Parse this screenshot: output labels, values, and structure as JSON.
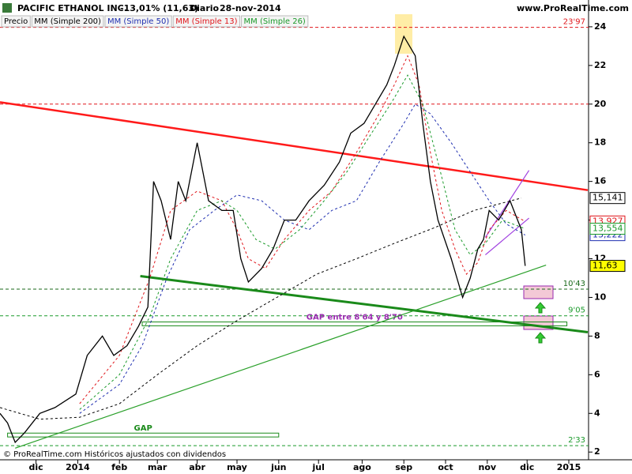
{
  "chart_data": {
    "type": "line",
    "title": "PACIFIC ETHANOL INC.",
    "change": "-13,01% (11,63)",
    "period": "Diario",
    "date": "28-nov-2014",
    "source": "www.ProRealTime.com",
    "footer": "© ProRealTime.com Históricos ajustados con dividendos",
    "xlim": [
      0,
      310
    ],
    "ylim": [
      1.6,
      24.65
    ],
    "yticks": [
      2,
      4,
      6,
      8,
      10,
      12,
      14,
      16,
      18,
      20,
      22,
      24
    ],
    "xticks": [
      {
        "value": 19,
        "label": "dic"
      },
      {
        "value": 41,
        "label": "2014"
      },
      {
        "value": 63,
        "label": "feb"
      },
      {
        "value": 83,
        "label": "mar"
      },
      {
        "value": 104,
        "label": "abr"
      },
      {
        "value": 125,
        "label": "may"
      },
      {
        "value": 147,
        "label": "jun"
      },
      {
        "value": 168,
        "label": "jul"
      },
      {
        "value": 191,
        "label": "ago"
      },
      {
        "value": 213,
        "label": "sep"
      },
      {
        "value": 235,
        "label": "oct"
      },
      {
        "value": 257,
        "label": "nov"
      },
      {
        "value": 278,
        "label": "dic"
      },
      {
        "value": 300,
        "label": "2015"
      }
    ],
    "series": [
      {
        "name": "Precio",
        "color": "#000000",
        "dash": false,
        "label_bg": "#ffff00",
        "x": [
          0,
          4,
          8,
          13,
          21,
          29,
          40,
          46,
          54,
          60,
          67,
          73,
          78,
          81,
          85,
          90,
          94,
          98,
          104,
          110,
          117,
          123,
          127,
          131,
          138,
          144,
          150,
          156,
          163,
          171,
          179,
          185,
          192,
          198,
          204,
          208,
          213,
          219,
          223,
          227,
          231,
          238,
          244,
          248,
          252,
          255,
          258,
          263,
          269,
          273,
          275,
          277
        ],
        "values": [
          4.0,
          3.5,
          2.5,
          3.0,
          4.0,
          4.3,
          5.0,
          7.0,
          8.0,
          7.0,
          7.5,
          8.5,
          9.5,
          16.0,
          15.0,
          13.0,
          16.0,
          15.0,
          18.0,
          15.0,
          14.5,
          14.5,
          12.0,
          10.8,
          11.5,
          12.5,
          14.0,
          14.0,
          15.0,
          15.8,
          17.0,
          18.5,
          19.0,
          20.0,
          21.0,
          22.0,
          23.5,
          22.5,
          19.0,
          16.0,
          14.0,
          12.0,
          10.0,
          11.0,
          12.5,
          13.0,
          14.5,
          14.0,
          15.0,
          14.0,
          13.5,
          11.63
        ],
        "last": {
          "value": 11.63,
          "label": "11,63"
        }
      },
      {
        "name": "MM (Simple 200)",
        "color": "#000000",
        "dash": true,
        "label_bg": "#ffffff",
        "x": [
          0,
          21,
          42,
          63,
          83,
          104,
          125,
          146,
          167,
          188,
          208,
          229,
          250,
          275
        ],
        "values": [
          4.3,
          3.7,
          3.8,
          4.5,
          6.0,
          7.5,
          8.8,
          10.0,
          11.2,
          12.0,
          12.8,
          13.6,
          14.5,
          15.141
        ],
        "last": {
          "value": 15.141,
          "label": "15,141"
        }
      },
      {
        "name": "MM (Simple 50)",
        "color": "#1f2fb0",
        "dash": true,
        "label_bg": "#ffffff",
        "x": [
          42,
          63,
          75,
          88,
          100,
          113,
          125,
          138,
          150,
          163,
          175,
          188,
          200,
          213,
          219,
          227,
          238,
          248,
          258,
          267,
          277
        ],
        "values": [
          4.0,
          5.5,
          7.5,
          11.0,
          13.5,
          14.5,
          15.3,
          15.0,
          14.0,
          13.5,
          14.5,
          15.0,
          17.0,
          19.0,
          20.0,
          19.5,
          18.0,
          16.5,
          15.0,
          13.8,
          13.222
        ],
        "last": {
          "value": 13.222,
          "label": "13,222"
        }
      },
      {
        "name": "MM (Simple 13)",
        "color": "#e0161b",
        "dash": true,
        "label_bg": "#ffffff",
        "x": [
          42,
          63,
          79,
          90,
          104,
          117,
          125,
          131,
          140,
          150,
          163,
          175,
          188,
          200,
          208,
          215,
          221,
          227,
          233,
          240,
          246,
          252,
          258,
          267,
          277
        ],
        "values": [
          4.5,
          7.0,
          11.0,
          14.5,
          15.5,
          15.0,
          13.5,
          12.0,
          11.5,
          13.0,
          14.5,
          15.5,
          17.5,
          19.5,
          21.0,
          22.5,
          21.0,
          17.5,
          14.5,
          12.5,
          11.2,
          11.8,
          13.5,
          14.5,
          13.927
        ],
        "last": {
          "value": 13.927,
          "label": "13,927"
        }
      },
      {
        "name": "MM (Simple 26)",
        "color": "#1a9a2a",
        "dash": true,
        "label_bg": "#ffffff",
        "x": [
          42,
          63,
          79,
          90,
          104,
          117,
          125,
          135,
          145,
          158,
          171,
          183,
          196,
          206,
          215,
          223,
          231,
          240,
          248,
          256,
          265,
          277
        ],
        "values": [
          4.2,
          6.0,
          9.0,
          12.0,
          14.5,
          15.0,
          14.5,
          13.0,
          12.5,
          13.5,
          15.0,
          16.5,
          18.5,
          20.0,
          21.5,
          20.0,
          17.0,
          13.5,
          12.2,
          12.8,
          14.0,
          13.554
        ],
        "last": {
          "value": 13.554,
          "label": "13,554"
        }
      }
    ],
    "hlines": [
      {
        "value": 23.97,
        "label": "23'97",
        "color": "#e0161b"
      },
      {
        "value": 20,
        "color": "#e0161b"
      },
      {
        "value": 10.43,
        "label": "10'43",
        "color": "#1a6a1a"
      },
      {
        "value": 9.05,
        "label": "9'05",
        "color": "#1a9a2a"
      },
      {
        "value": 2.33,
        "label": "2'33",
        "color": "#1a9a2a"
      }
    ],
    "trendlines": [
      {
        "color": "#ff1a1a",
        "width": 2.5,
        "x": [
          0,
          310
        ],
        "values": [
          20.1,
          15.55
        ]
      },
      {
        "color": "#1a8a1a",
        "width": 3,
        "x": [
          74,
          310
        ],
        "values": [
          11.1,
          8.2
        ]
      },
      {
        "color": "#2aa02a",
        "width": 1.2,
        "x": [
          8,
          288
        ],
        "values": [
          2.2,
          11.67
        ]
      },
      {
        "color": "#a040e0",
        "width": 1.2,
        "x": [
          256,
          279
        ],
        "values": [
          13.1,
          16.57
        ]
      },
      {
        "color": "#a040e0",
        "width": 1.2,
        "x": [
          256,
          279
        ],
        "values": [
          12.2,
          14.1
        ]
      }
    ],
    "gaps": [
      {
        "label": "GAP entre 8'64 y 8'70",
        "color": "#9a2ab0",
        "x": [
          75,
          299
        ],
        "values": [
          8.53,
          8.73
        ]
      },
      {
        "label": "GAP",
        "color": "#1a8a1a",
        "x": [
          4,
          147
        ],
        "values": [
          2.78,
          2.98
        ]
      }
    ]
  }
}
